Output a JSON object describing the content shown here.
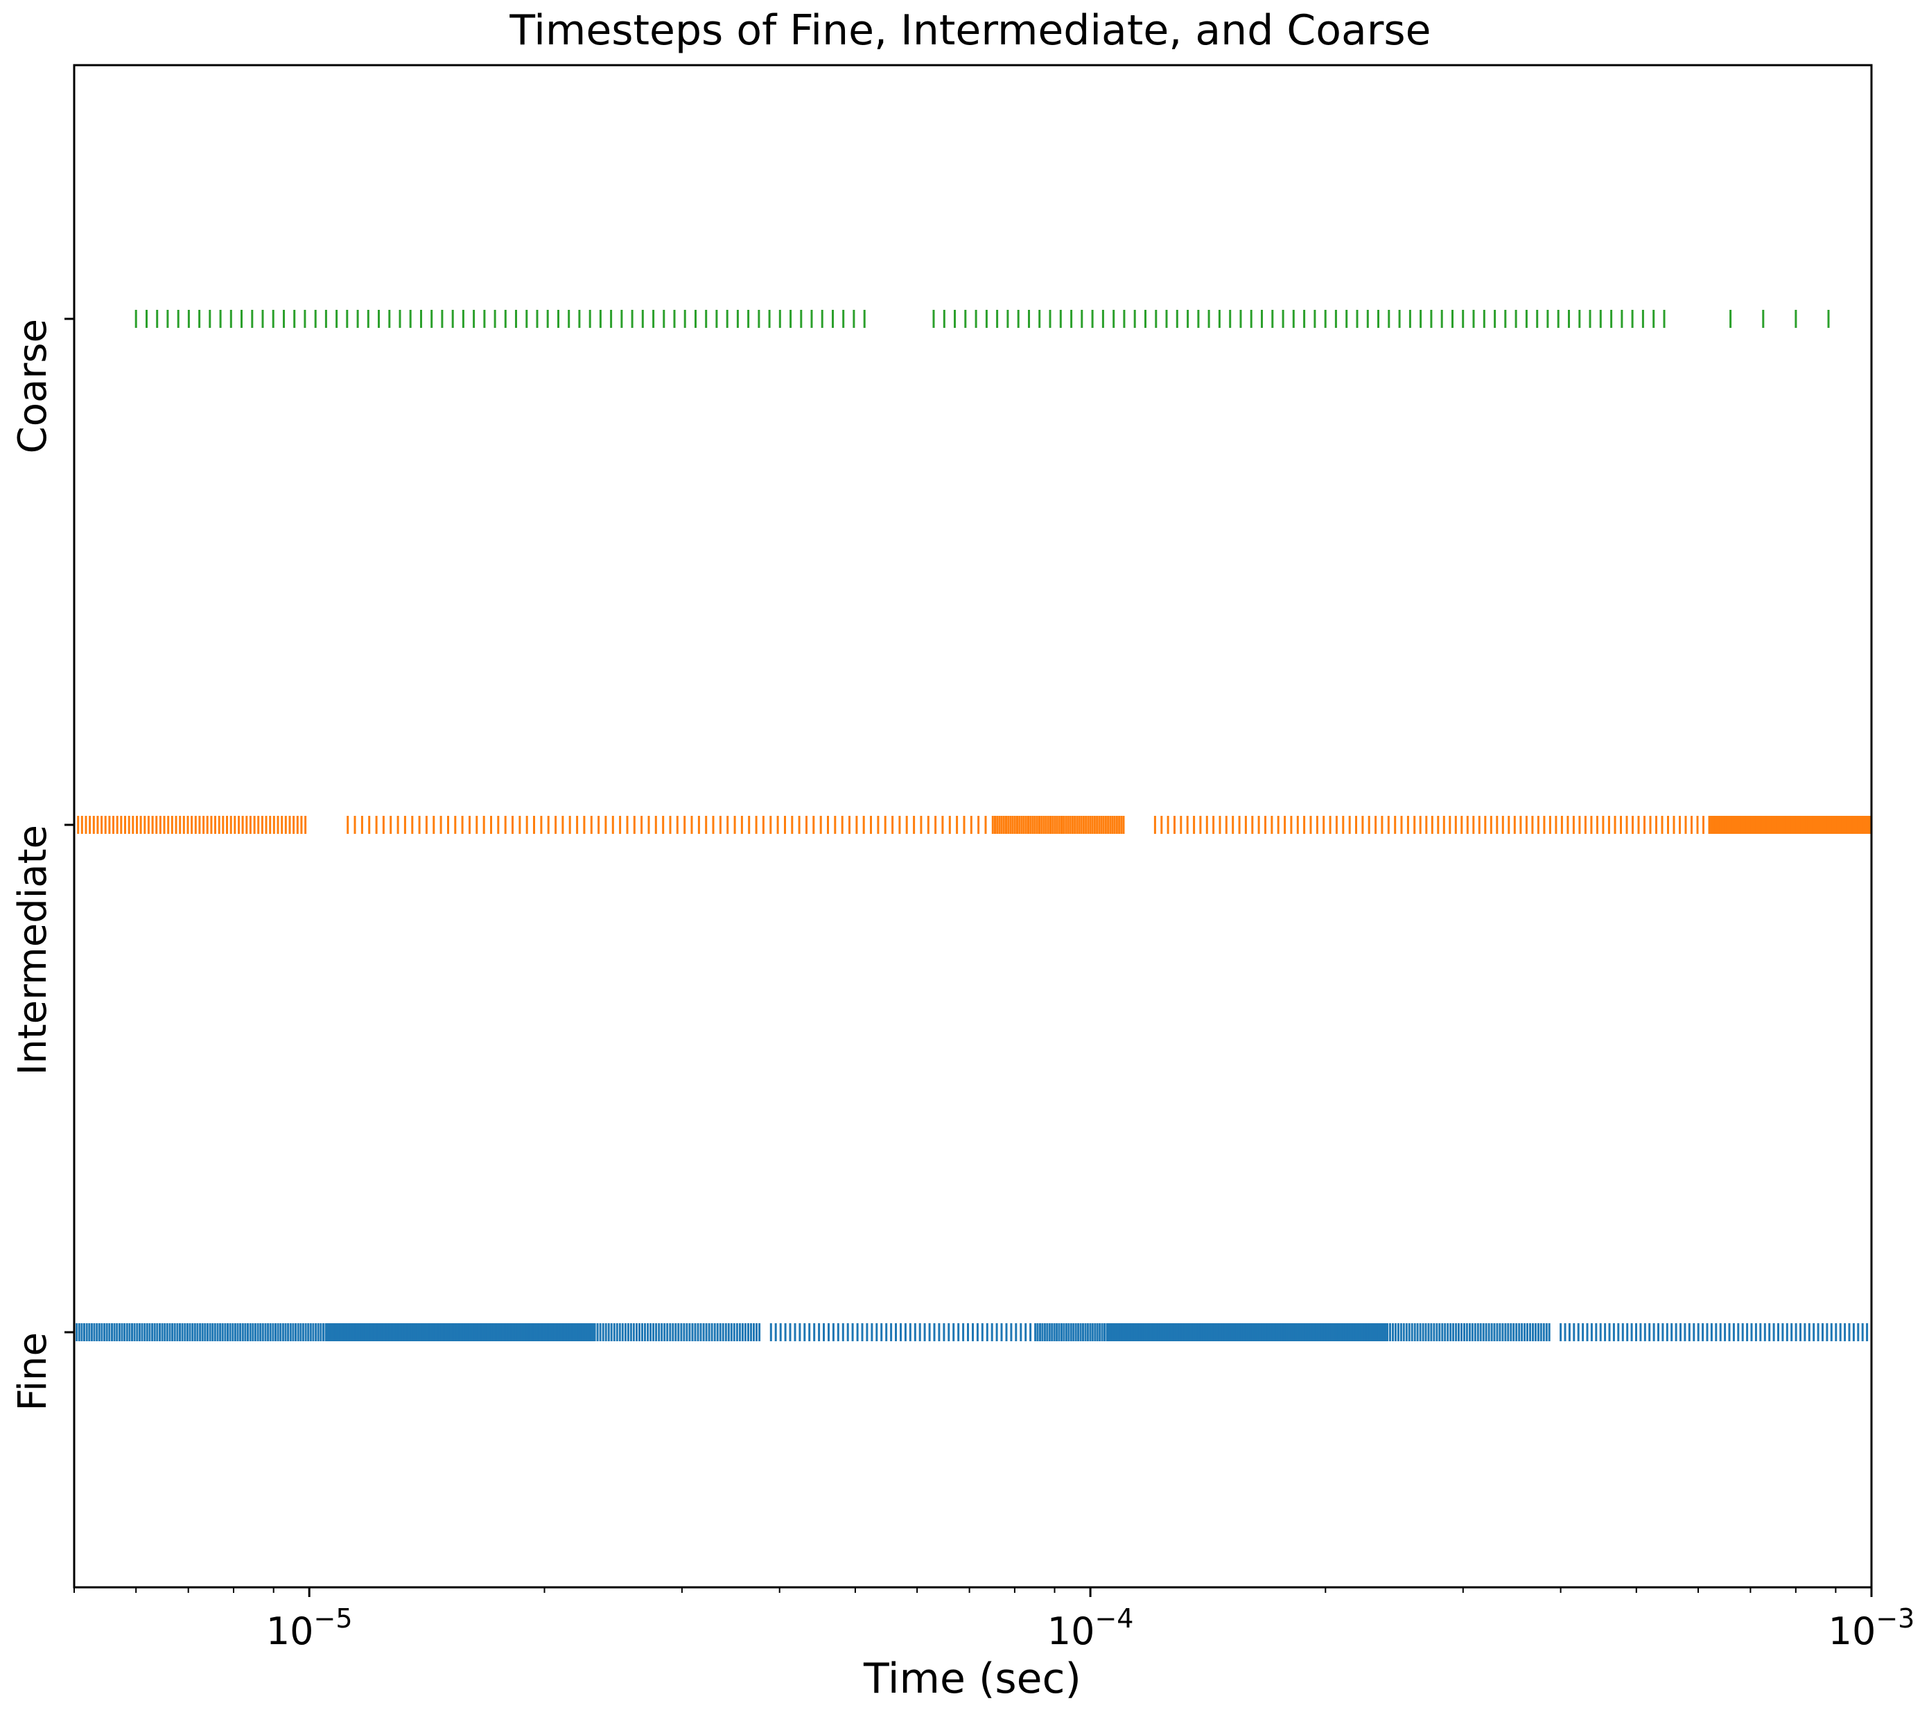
{
  "chart_data": {
    "type": "scatter",
    "title": "Timesteps of Fine, Intermediate, and Coarse",
    "xlabel": "Time (sec)",
    "ylabel": "",
    "xscale": "log",
    "xlim": [
      5e-06,
      0.001
    ],
    "x_ticks": [
      {
        "base": "10",
        "exponent": "−5",
        "value": 1e-05
      },
      {
        "base": "10",
        "exponent": "−4",
        "value": 0.0001
      },
      {
        "base": "10",
        "exponent": "−3",
        "value": 0.001
      }
    ],
    "categories": [
      "Fine",
      "Intermediate",
      "Coarse"
    ],
    "grid": false,
    "legend": "none",
    "series": [
      {
        "name": "Fine",
        "color": "#1f77b4",
        "segments": [
          {
            "start": 5e-06,
            "end": 1.05e-05,
            "count": 100
          },
          {
            "start": 1.05e-05,
            "end": 2.32e-05,
            "count": 300
          },
          {
            "start": 2.32e-05,
            "end": 3.8e-05,
            "count": 60
          },
          {
            "start": 3.9e-05,
            "end": 8.5e-05,
            "count": 55
          },
          {
            "start": 8.5e-05,
            "end": 0.000105,
            "count": 30
          },
          {
            "start": 0.000105,
            "end": 0.00024,
            "count": 300
          },
          {
            "start": 0.00024,
            "end": 0.00039,
            "count": 60
          },
          {
            "start": 0.0004,
            "end": 0.001,
            "count": 70
          }
        ]
      },
      {
        "name": "Intermediate",
        "color": "#ff7f0e",
        "segments": [
          {
            "start": 5e-06,
            "end": 1e-05,
            "count": 60
          },
          {
            "start": 1.12e-05,
            "end": 7.5e-05,
            "count": 90
          },
          {
            "start": 7.5e-05,
            "end": 0.000111,
            "count": 60
          },
          {
            "start": 0.000121,
            "end": 0.00026,
            "count": 40
          },
          {
            "start": 0.00026,
            "end": 0.00062,
            "count": 50
          },
          {
            "start": 0.00062,
            "end": 0.001,
            "count": 100
          }
        ]
      },
      {
        "name": "Coarse",
        "color": "#2ca02c",
        "segments": [
          {
            "start": 6e-06,
            "end": 5.3e-05,
            "count": 70
          },
          {
            "start": 6.3e-05,
            "end": 0.00056,
            "count": 70
          },
          {
            "start": 0.00066,
            "end": 0.00097,
            "count": 4
          }
        ]
      }
    ]
  }
}
